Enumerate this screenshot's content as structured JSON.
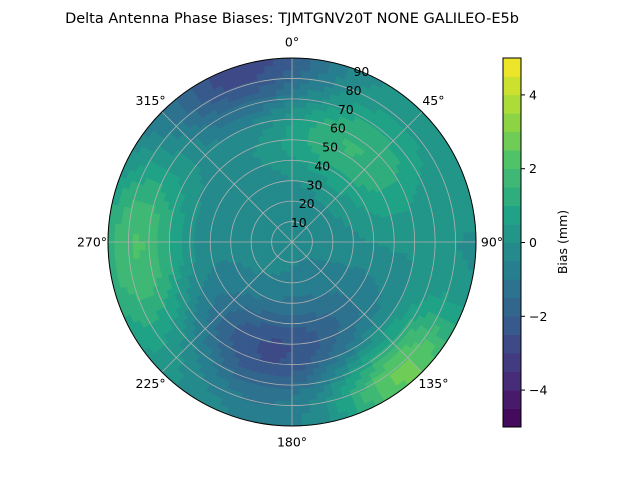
{
  "chart_data": {
    "type": "polar-contour",
    "title": "Delta Antenna Phase Biases: TJMTGNV20T      NONE GALILEO-E5b",
    "theta_labels": [
      "0°",
      "45°",
      "90°",
      "135°",
      "180°",
      "225°",
      "270°",
      "315°"
    ],
    "radial_tick_labels": [
      "10",
      "20",
      "30",
      "40",
      "50",
      "60",
      "70",
      "80",
      "90"
    ],
    "radial_range": [
      0,
      90
    ],
    "grid": true,
    "colorbar": {
      "label": "Bias (mm)",
      "ticks": [
        "−4",
        "−2",
        "0",
        "2",
        "4"
      ],
      "range": [
        -5,
        5
      ],
      "levels": [
        -5,
        -4.5,
        -4,
        -3.5,
        -3,
        -2.5,
        -2,
        -1.5,
        -1,
        -0.5,
        0,
        0.5,
        1,
        1.5,
        2,
        2.5,
        3,
        3.5,
        4,
        4.5,
        5
      ],
      "colors": [
        "#440154",
        "#46327e",
        "#365c8d",
        "#277f8e",
        "#1fa187",
        "#4ac16d",
        "#a0da39",
        "#fde725"
      ],
      "placement": "right"
    },
    "features": [
      {
        "name": "high-bias-lobe",
        "azimuth_deg": 140,
        "zenith_deg": 85,
        "value_mm": 3.6
      },
      {
        "name": "positive-lobe-west",
        "azimuth_deg": 272,
        "zenith_deg": 75,
        "value_mm": 2.2
      },
      {
        "name": "positive-lobe-north-east",
        "azimuth_deg": 25,
        "zenith_deg": 55,
        "value_mm": 1.8
      },
      {
        "name": "negative-lobe-south",
        "azimuth_deg": 195,
        "zenith_deg": 55,
        "value_mm": -2.3
      },
      {
        "name": "negative-ring-north",
        "azimuth_deg": 345,
        "zenith_deg": 88,
        "value_mm": -2.0
      }
    ]
  }
}
